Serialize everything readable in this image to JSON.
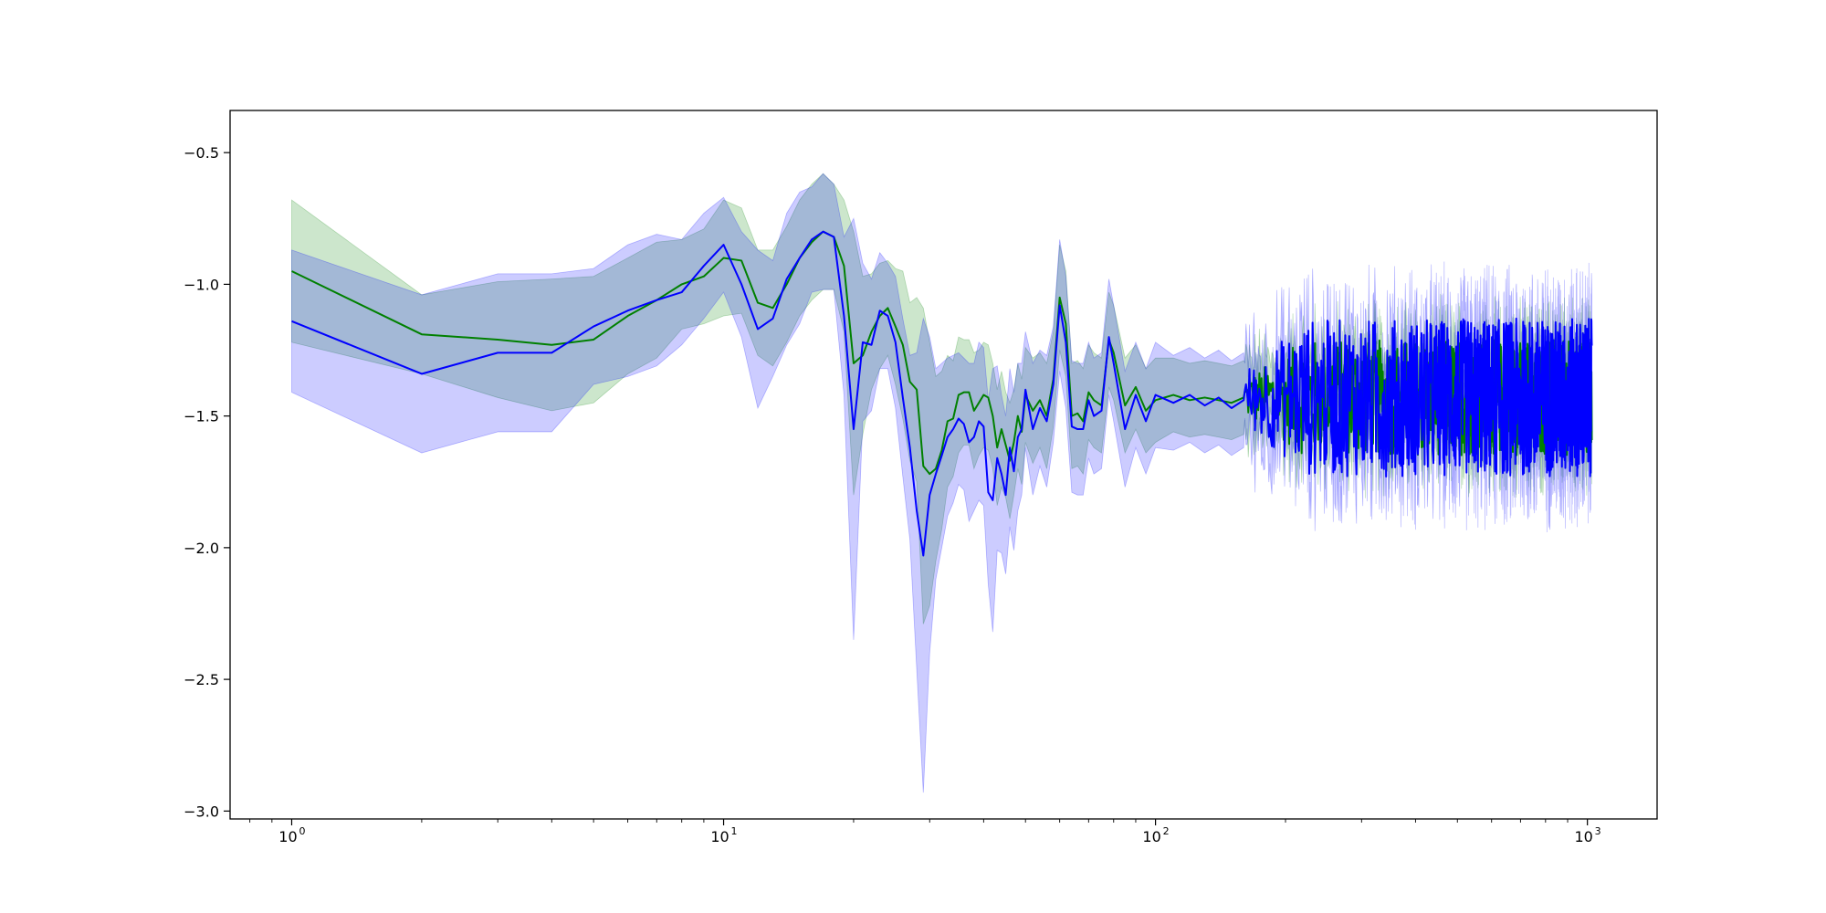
{
  "chart_data": {
    "type": "line",
    "title": "",
    "xlabel": "",
    "ylabel": "",
    "x_scale": "log",
    "xlim": [
      0.72,
      1450
    ],
    "ylim": [
      -3.03,
      -0.34
    ],
    "grid": false,
    "legend": "none",
    "x_ticks": [
      {
        "value": 1,
        "base": "10",
        "exp": "0"
      },
      {
        "value": 10,
        "base": "10",
        "exp": "1"
      },
      {
        "value": 100,
        "base": "10",
        "exp": "2"
      },
      {
        "value": 1000,
        "base": "10",
        "exp": "3"
      }
    ],
    "y_ticks": [
      {
        "value": -0.5,
        "label": "−0.5"
      },
      {
        "value": -1.0,
        "label": "−1.0"
      },
      {
        "value": -1.5,
        "label": "−1.5"
      },
      {
        "value": -2.0,
        "label": "−2.0"
      },
      {
        "value": -2.5,
        "label": "−2.5"
      },
      {
        "value": -3.0,
        "label": "−3.0"
      }
    ],
    "series": [
      {
        "color": "#008000",
        "band_color": "#008000",
        "band_opacity": 0.2,
        "points": [
          [
            1,
            -0.95,
            0.27
          ],
          [
            2,
            -1.19,
            0.15
          ],
          [
            3,
            -1.21,
            0.22
          ],
          [
            4,
            -1.23,
            0.25
          ],
          [
            5,
            -1.21,
            0.24
          ],
          [
            6,
            -1.12,
            0.22
          ],
          [
            7,
            -1.06,
            0.22
          ],
          [
            8,
            -1.0,
            0.17
          ],
          [
            9,
            -0.97,
            0.18
          ],
          [
            10,
            -0.9,
            0.22
          ],
          [
            11,
            -0.91,
            0.2
          ],
          [
            12,
            -1.07,
            0.2
          ],
          [
            13,
            -1.09,
            0.22
          ],
          [
            14,
            -1.0,
            0.22
          ],
          [
            15,
            -0.9,
            0.22
          ],
          [
            16,
            -0.84,
            0.22
          ],
          [
            17,
            -0.8,
            0.22
          ],
          [
            18,
            -0.82,
            0.2
          ],
          [
            19,
            -0.93,
            0.25
          ],
          [
            20,
            -1.3,
            0.5
          ],
          [
            21,
            -1.27,
            0.3
          ],
          [
            22,
            -1.18,
            0.22
          ],
          [
            23,
            -1.12,
            0.2
          ],
          [
            24,
            -1.09,
            0.18
          ],
          [
            25,
            -1.16,
            0.22
          ],
          [
            26,
            -1.23,
            0.28
          ],
          [
            27,
            -1.37,
            0.3
          ],
          [
            28,
            -1.4,
            0.35
          ],
          [
            29,
            -1.69,
            0.6
          ],
          [
            30,
            -1.72,
            0.5
          ],
          [
            31,
            -1.7,
            0.35
          ],
          [
            32,
            -1.63,
            0.3
          ],
          [
            33,
            -1.52,
            0.25
          ],
          [
            34,
            -1.51,
            0.22
          ],
          [
            35,
            -1.42,
            0.22
          ],
          [
            36,
            -1.41,
            0.2
          ],
          [
            37,
            -1.41,
            0.2
          ],
          [
            38,
            -1.48,
            0.22
          ],
          [
            39,
            -1.45,
            0.2
          ],
          [
            40,
            -1.42,
            0.2
          ],
          [
            41,
            -1.43,
            0.2
          ],
          [
            42,
            -1.5,
            0.2
          ],
          [
            43,
            -1.62,
            0.22
          ],
          [
            44,
            -1.55,
            0.22
          ],
          [
            45,
            -1.61,
            0.2
          ],
          [
            46,
            -1.67,
            0.22
          ],
          [
            47,
            -1.6,
            0.2
          ],
          [
            48,
            -1.5,
            0.2
          ],
          [
            49,
            -1.56,
            0.2
          ],
          [
            50,
            -1.42,
            0.18
          ],
          [
            52,
            -1.48,
            0.2
          ],
          [
            54,
            -1.44,
            0.18
          ],
          [
            56,
            -1.5,
            0.2
          ],
          [
            58,
            -1.36,
            0.18
          ],
          [
            60,
            -1.05,
            0.2
          ],
          [
            62,
            -1.15,
            0.2
          ],
          [
            64,
            -1.5,
            0.2
          ],
          [
            66,
            -1.49,
            0.2
          ],
          [
            68,
            -1.52,
            0.2
          ],
          [
            70,
            -1.41,
            0.18
          ],
          [
            72,
            -1.44,
            0.18
          ],
          [
            75,
            -1.46,
            0.18
          ],
          [
            78,
            -1.21,
            0.18
          ],
          [
            80,
            -1.26,
            0.18
          ],
          [
            85,
            -1.46,
            0.18
          ],
          [
            90,
            -1.39,
            0.16
          ],
          [
            95,
            -1.48,
            0.16
          ],
          [
            100,
            -1.44,
            0.16
          ],
          [
            110,
            -1.42,
            0.14
          ],
          [
            120,
            -1.44,
            0.14
          ],
          [
            130,
            -1.43,
            0.14
          ],
          [
            140,
            -1.44,
            0.14
          ],
          [
            150,
            -1.45,
            0.14
          ],
          [
            160,
            -1.43,
            0.14
          ]
        ]
      },
      {
        "color": "#0000ff",
        "band_color": "#0000ff",
        "band_opacity": 0.2,
        "points": [
          [
            1,
            -1.14,
            0.27
          ],
          [
            2,
            -1.34,
            0.3
          ],
          [
            3,
            -1.26,
            0.3
          ],
          [
            4,
            -1.26,
            0.3
          ],
          [
            5,
            -1.16,
            0.22
          ],
          [
            6,
            -1.1,
            0.25
          ],
          [
            7,
            -1.06,
            0.25
          ],
          [
            8,
            -1.03,
            0.2
          ],
          [
            9,
            -0.93,
            0.2
          ],
          [
            10,
            -0.85,
            0.18
          ],
          [
            11,
            -1.0,
            0.2
          ],
          [
            12,
            -1.17,
            0.3
          ],
          [
            13,
            -1.13,
            0.22
          ],
          [
            14,
            -0.98,
            0.25
          ],
          [
            15,
            -0.9,
            0.25
          ],
          [
            16,
            -0.83,
            0.2
          ],
          [
            17,
            -0.8,
            0.22
          ],
          [
            18,
            -0.82,
            0.2
          ],
          [
            19,
            -1.12,
            0.3
          ],
          [
            20,
            -1.55,
            0.8
          ],
          [
            21,
            -1.22,
            0.3
          ],
          [
            22,
            -1.23,
            0.25
          ],
          [
            23,
            -1.1,
            0.22
          ],
          [
            24,
            -1.12,
            0.2
          ],
          [
            25,
            -1.22,
            0.25
          ],
          [
            26,
            -1.43,
            0.3
          ],
          [
            27,
            -1.62,
            0.35
          ],
          [
            28,
            -1.86,
            0.6
          ],
          [
            29,
            -2.03,
            0.9
          ],
          [
            30,
            -1.8,
            0.6
          ],
          [
            31,
            -1.72,
            0.4
          ],
          [
            32,
            -1.65,
            0.35
          ],
          [
            33,
            -1.58,
            0.3
          ],
          [
            34,
            -1.55,
            0.28
          ],
          [
            35,
            -1.51,
            0.25
          ],
          [
            36,
            -1.53,
            0.25
          ],
          [
            37,
            -1.6,
            0.3
          ],
          [
            38,
            -1.58,
            0.28
          ],
          [
            39,
            -1.52,
            0.3
          ],
          [
            40,
            -1.54,
            0.3
          ],
          [
            41,
            -1.79,
            0.35
          ],
          [
            42,
            -1.82,
            0.5
          ],
          [
            43,
            -1.66,
            0.35
          ],
          [
            44,
            -1.72,
            0.3
          ],
          [
            45,
            -1.8,
            0.3
          ],
          [
            46,
            -1.62,
            0.3
          ],
          [
            47,
            -1.71,
            0.3
          ],
          [
            48,
            -1.58,
            0.28
          ],
          [
            49,
            -1.55,
            0.25
          ],
          [
            50,
            -1.4,
            0.22
          ],
          [
            52,
            -1.55,
            0.25
          ],
          [
            54,
            -1.47,
            0.22
          ],
          [
            56,
            -1.52,
            0.25
          ],
          [
            58,
            -1.38,
            0.22
          ],
          [
            60,
            -1.08,
            0.25
          ],
          [
            62,
            -1.22,
            0.25
          ],
          [
            64,
            -1.54,
            0.25
          ],
          [
            66,
            -1.55,
            0.25
          ],
          [
            68,
            -1.55,
            0.25
          ],
          [
            70,
            -1.44,
            0.22
          ],
          [
            72,
            -1.5,
            0.22
          ],
          [
            75,
            -1.48,
            0.22
          ],
          [
            78,
            -1.2,
            0.22
          ],
          [
            80,
            -1.3,
            0.22
          ],
          [
            85,
            -1.55,
            0.22
          ],
          [
            90,
            -1.42,
            0.2
          ],
          [
            95,
            -1.52,
            0.2
          ],
          [
            100,
            -1.42,
            0.2
          ],
          [
            110,
            -1.45,
            0.18
          ],
          [
            120,
            -1.42,
            0.18
          ],
          [
            130,
            -1.46,
            0.18
          ],
          [
            140,
            -1.43,
            0.18
          ],
          [
            150,
            -1.47,
            0.18
          ],
          [
            160,
            -1.44,
            0.18
          ]
        ]
      }
    ],
    "noise_tail": {
      "x_start": 160,
      "x_end": 1024,
      "center": -1.43,
      "green_amplitude": 0.22,
      "blue_amplitude": 0.3,
      "green_band": 0.13,
      "blue_band": 0.17,
      "blue_min": -2.12,
      "blue_max": -0.87,
      "green_min": -1.85,
      "green_max": -0.88
    }
  }
}
